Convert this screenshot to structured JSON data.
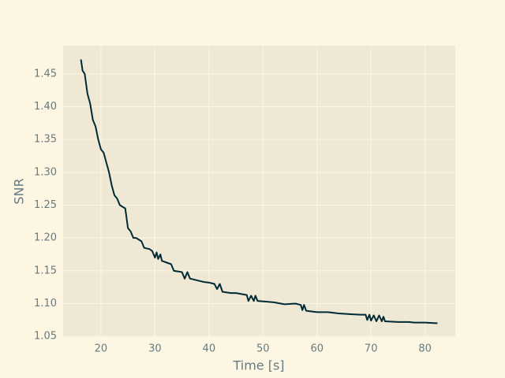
{
  "chart_data": {
    "type": "line",
    "xlabel": "Time [s]",
    "ylabel": "SNR",
    "xlim": [
      13,
      85.6
    ],
    "ylim": [
      1.049,
      1.493
    ],
    "xticks": [
      20,
      30,
      40,
      50,
      60,
      70,
      80
    ],
    "yticks": [
      {
        "value": 1.05,
        "label": "1.05"
      },
      {
        "value": 1.1,
        "label": "1.10"
      },
      {
        "value": 1.15,
        "label": "1.15"
      },
      {
        "value": 1.2,
        "label": "1.20"
      },
      {
        "value": 1.25,
        "label": "1.25"
      },
      {
        "value": 1.3,
        "label": "1.30"
      },
      {
        "value": 1.35,
        "label": "1.35"
      },
      {
        "value": 1.4,
        "label": "1.40"
      },
      {
        "value": 1.45,
        "label": "1.45"
      }
    ],
    "grid": true,
    "series": [
      {
        "color": "#002b36",
        "x": [
          16.3,
          16.6,
          17,
          17.5,
          18,
          18.5,
          19,
          19.5,
          20,
          20.5,
          21,
          21.5,
          22,
          22.5,
          23,
          23.5,
          24.5,
          25,
          25.5,
          26,
          26.5,
          27.5,
          28,
          29,
          29.5,
          30,
          30.3,
          30.6,
          31,
          31.3,
          32,
          33,
          33.5,
          35,
          35.5,
          36,
          36.5,
          38,
          39,
          40,
          41,
          41.5,
          42,
          42.5,
          44,
          45,
          47,
          47.3,
          47.8,
          48.3,
          48.6,
          49,
          52,
          54,
          56,
          57,
          57.3,
          57.6,
          58,
          60,
          62,
          64,
          66,
          68,
          69,
          69.3,
          69.7,
          70,
          70.5,
          71,
          71.5,
          72,
          72.3,
          72.6,
          75,
          77,
          78,
          80,
          82.3
        ],
        "values": [
          1.472,
          1.455,
          1.45,
          1.42,
          1.405,
          1.38,
          1.37,
          1.35,
          1.335,
          1.33,
          1.315,
          1.3,
          1.28,
          1.265,
          1.26,
          1.25,
          1.245,
          1.215,
          1.21,
          1.2,
          1.2,
          1.195,
          1.185,
          1.183,
          1.18,
          1.17,
          1.178,
          1.168,
          1.175,
          1.165,
          1.163,
          1.16,
          1.15,
          1.148,
          1.138,
          1.148,
          1.138,
          1.135,
          1.133,
          1.132,
          1.13,
          1.122,
          1.13,
          1.118,
          1.116,
          1.116,
          1.113,
          1.104,
          1.112,
          1.104,
          1.112,
          1.104,
          1.102,
          1.099,
          1.1,
          1.098,
          1.09,
          1.098,
          1.089,
          1.087,
          1.087,
          1.085,
          1.084,
          1.083,
          1.083,
          1.075,
          1.083,
          1.074,
          1.082,
          1.073,
          1.082,
          1.073,
          1.08,
          1.073,
          1.072,
          1.072,
          1.071,
          1.071,
          1.07
        ]
      }
    ]
  }
}
